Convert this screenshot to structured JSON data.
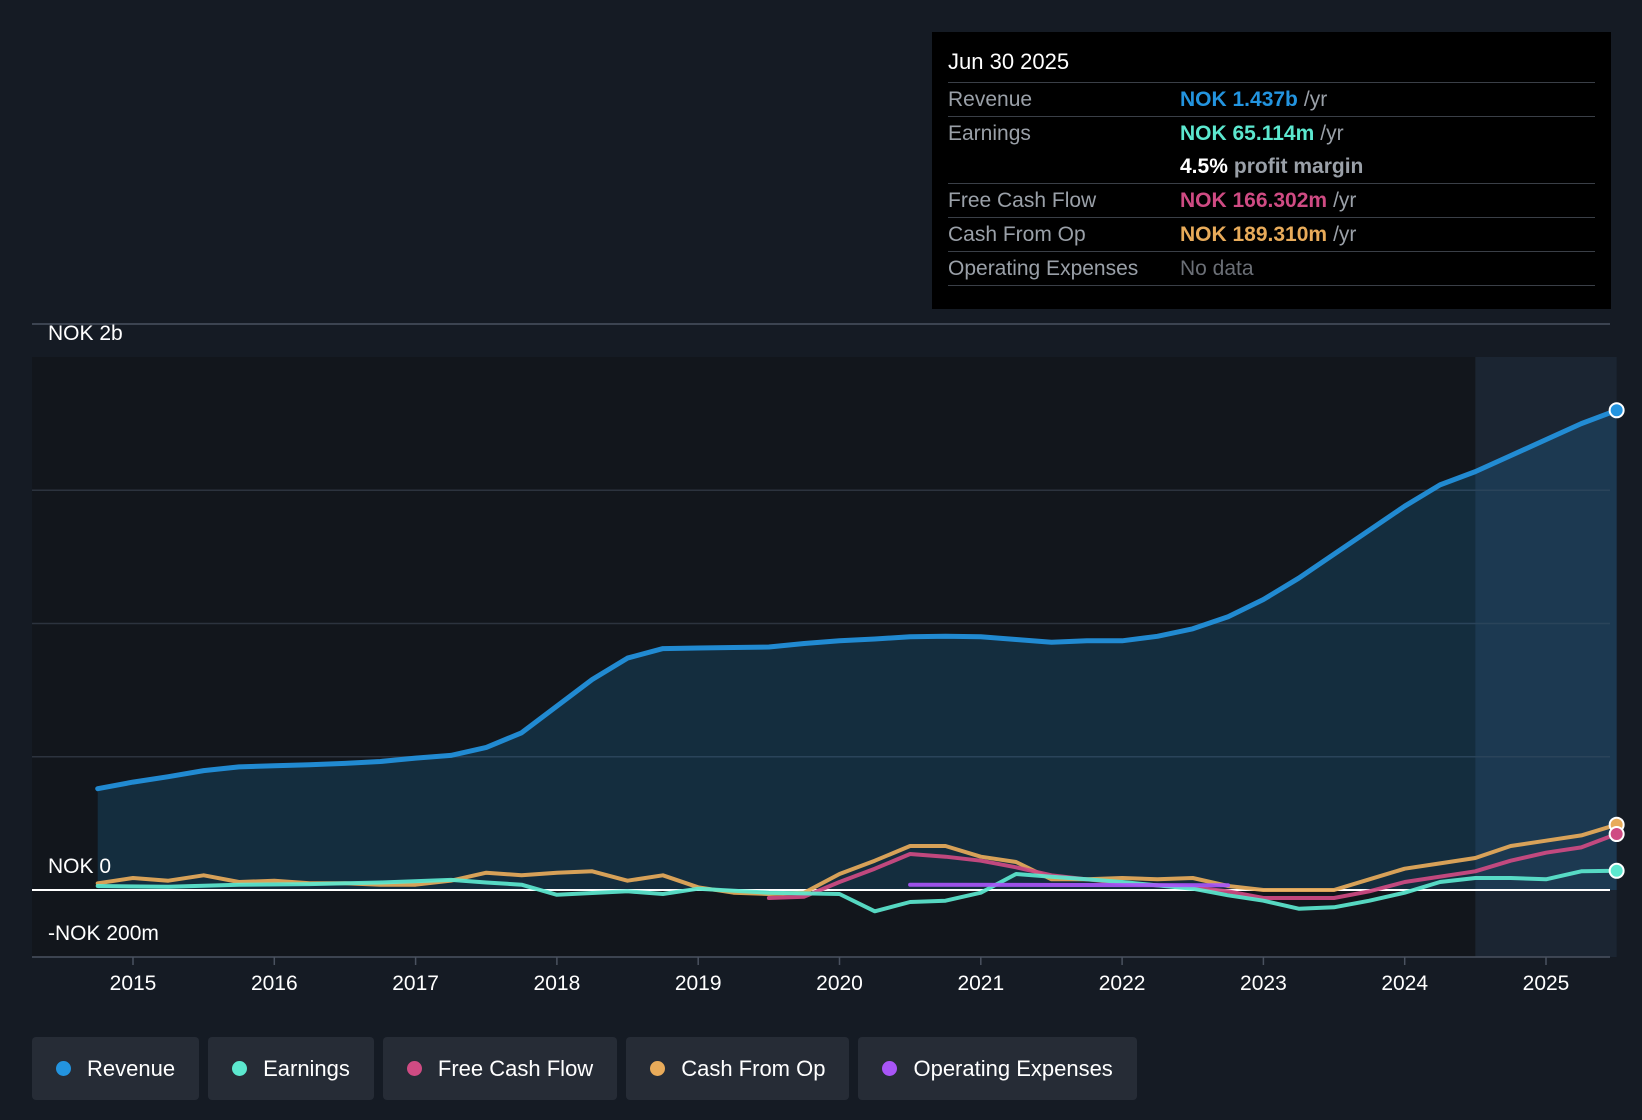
{
  "chart_data": {
    "type": "line",
    "title": "",
    "ylabel_top": "NOK 2b",
    "ylabel_zero": "NOK 0",
    "ylabel_bottom": "-NOK 200m",
    "ylim": [
      -200,
      2000
    ],
    "x_ticks": [
      "2015",
      "2016",
      "2017",
      "2018",
      "2019",
      "2020",
      "2021",
      "2022",
      "2023",
      "2024",
      "2025"
    ],
    "x_range": [
      2014.75,
      2025.5
    ],
    "forecast_start": 2024.5,
    "series": [
      {
        "name": "Revenue",
        "color": "#2394df",
        "filled": true,
        "points": [
          [
            2014.75,
            380
          ],
          [
            2015.0,
            405
          ],
          [
            2015.25,
            425
          ],
          [
            2015.5,
            448
          ],
          [
            2015.75,
            462
          ],
          [
            2016.0,
            466
          ],
          [
            2016.25,
            470
          ],
          [
            2016.5,
            475
          ],
          [
            2016.75,
            482
          ],
          [
            2017.0,
            495
          ],
          [
            2017.25,
            505
          ],
          [
            2017.5,
            535
          ],
          [
            2017.75,
            590
          ],
          [
            2018.0,
            690
          ],
          [
            2018.25,
            790
          ],
          [
            2018.5,
            870
          ],
          [
            2018.75,
            906
          ],
          [
            2019.0,
            908
          ],
          [
            2019.25,
            910
          ],
          [
            2019.5,
            912
          ],
          [
            2019.75,
            925
          ],
          [
            2020.0,
            935
          ],
          [
            2020.25,
            942
          ],
          [
            2020.5,
            950
          ],
          [
            2020.75,
            952
          ],
          [
            2021.0,
            950
          ],
          [
            2021.25,
            940
          ],
          [
            2021.5,
            930
          ],
          [
            2021.75,
            935
          ],
          [
            2022.0,
            935
          ],
          [
            2022.25,
            952
          ],
          [
            2022.5,
            980
          ],
          [
            2022.75,
            1025
          ],
          [
            2023.0,
            1090
          ],
          [
            2023.25,
            1170
          ],
          [
            2023.5,
            1260
          ],
          [
            2023.75,
            1350
          ],
          [
            2024.0,
            1440
          ],
          [
            2024.25,
            1520
          ],
          [
            2024.5,
            1570
          ],
          [
            2024.75,
            1630
          ],
          [
            2025.0,
            1690
          ],
          [
            2025.25,
            1750
          ],
          [
            2025.5,
            1800
          ]
        ]
      },
      {
        "name": "Earnings",
        "color": "#5ce8cf",
        "points": [
          [
            2014.75,
            15
          ],
          [
            2015.25,
            12
          ],
          [
            2015.75,
            20
          ],
          [
            2016.25,
            22
          ],
          [
            2016.75,
            28
          ],
          [
            2017.25,
            38
          ],
          [
            2017.5,
            28
          ],
          [
            2017.75,
            20
          ],
          [
            2018.0,
            -18
          ],
          [
            2018.5,
            -5
          ],
          [
            2018.75,
            -15
          ],
          [
            2019.0,
            5
          ],
          [
            2019.5,
            -10
          ],
          [
            2020.0,
            -15
          ],
          [
            2020.25,
            -80
          ],
          [
            2020.5,
            -45
          ],
          [
            2020.75,
            -40
          ],
          [
            2021.0,
            -10
          ],
          [
            2021.25,
            60
          ],
          [
            2021.5,
            50
          ],
          [
            2021.75,
            40
          ],
          [
            2022.0,
            30
          ],
          [
            2022.5,
            5
          ],
          [
            2022.75,
            -20
          ],
          [
            2023.0,
            -40
          ],
          [
            2023.25,
            -70
          ],
          [
            2023.5,
            -65
          ],
          [
            2023.75,
            -40
          ],
          [
            2024.0,
            -10
          ],
          [
            2024.25,
            30
          ],
          [
            2024.5,
            45
          ],
          [
            2024.75,
            45
          ],
          [
            2025.0,
            40
          ],
          [
            2025.25,
            70
          ],
          [
            2025.5,
            72
          ]
        ]
      },
      {
        "name": "Free Cash Flow",
        "color": "#cf4b83",
        "points": [
          [
            2019.5,
            -30
          ],
          [
            2019.75,
            -25
          ],
          [
            2020.0,
            30
          ],
          [
            2020.25,
            80
          ],
          [
            2020.5,
            135
          ],
          [
            2020.75,
            125
          ],
          [
            2021.0,
            110
          ],
          [
            2021.25,
            85
          ],
          [
            2021.5,
            55
          ],
          [
            2021.75,
            40
          ],
          [
            2022.0,
            25
          ],
          [
            2022.5,
            10
          ],
          [
            2022.75,
            -5
          ],
          [
            2023.0,
            -30
          ],
          [
            2023.5,
            -30
          ],
          [
            2023.75,
            -5
          ],
          [
            2024.0,
            30
          ],
          [
            2024.5,
            70
          ],
          [
            2024.75,
            110
          ],
          [
            2025.0,
            140
          ],
          [
            2025.25,
            160
          ],
          [
            2025.5,
            210
          ]
        ]
      },
      {
        "name": "Cash From Op",
        "color": "#e8ab5a",
        "points": [
          [
            2014.75,
            25
          ],
          [
            2015.0,
            45
          ],
          [
            2015.25,
            35
          ],
          [
            2015.5,
            55
          ],
          [
            2015.75,
            30
          ],
          [
            2016.0,
            35
          ],
          [
            2016.25,
            25
          ],
          [
            2016.5,
            25
          ],
          [
            2016.75,
            20
          ],
          [
            2017.0,
            20
          ],
          [
            2017.25,
            35
          ],
          [
            2017.5,
            65
          ],
          [
            2017.75,
            55
          ],
          [
            2018.0,
            65
          ],
          [
            2018.25,
            70
          ],
          [
            2018.5,
            35
          ],
          [
            2018.75,
            55
          ],
          [
            2019.0,
            10
          ],
          [
            2019.25,
            -10
          ],
          [
            2019.5,
            -15
          ],
          [
            2019.75,
            -10
          ],
          [
            2020.0,
            60
          ],
          [
            2020.25,
            110
          ],
          [
            2020.5,
            165
          ],
          [
            2020.75,
            165
          ],
          [
            2021.0,
            125
          ],
          [
            2021.25,
            105
          ],
          [
            2021.5,
            40
          ],
          [
            2021.75,
            40
          ],
          [
            2022.0,
            45
          ],
          [
            2022.25,
            40
          ],
          [
            2022.5,
            45
          ],
          [
            2022.75,
            15
          ],
          [
            2023.0,
            0
          ],
          [
            2023.25,
            0
          ],
          [
            2023.5,
            0
          ],
          [
            2023.75,
            40
          ],
          [
            2024.0,
            80
          ],
          [
            2024.25,
            100
          ],
          [
            2024.5,
            120
          ],
          [
            2024.75,
            165
          ],
          [
            2025.0,
            185
          ],
          [
            2025.25,
            205
          ],
          [
            2025.5,
            245
          ]
        ]
      },
      {
        "name": "Operating Expenses",
        "color": "#a855f7",
        "points": [
          [
            2020.5,
            20
          ],
          [
            2022.75,
            18
          ]
        ]
      }
    ]
  },
  "tooltip": {
    "date": "Jun 30 2025",
    "revenue_label": "Revenue",
    "revenue_value": "NOK 1.437b",
    "revenue_unit": "/yr",
    "earnings_label": "Earnings",
    "earnings_value": "NOK 65.114m",
    "earnings_unit": "/yr",
    "margin_value": "4.5%",
    "margin_text": "profit margin",
    "fcf_label": "Free Cash Flow",
    "fcf_value": "NOK 166.302m",
    "fcf_unit": "/yr",
    "cfo_label": "Cash From Op",
    "cfo_value": "NOK 189.310m",
    "cfo_unit": "/yr",
    "opex_label": "Operating Expenses",
    "opex_value": "No data"
  },
  "legend": {
    "revenue": "Revenue",
    "earnings": "Earnings",
    "fcf": "Free Cash Flow",
    "cfo": "Cash From Op",
    "opex": "Operating Expenses"
  },
  "colors": {
    "revenue": "#2394df",
    "earnings": "#5ce8cf",
    "fcf": "#cf4b83",
    "cfo": "#e8ab5a",
    "opex": "#a855f7",
    "opex_muted": "#6b6f76"
  }
}
